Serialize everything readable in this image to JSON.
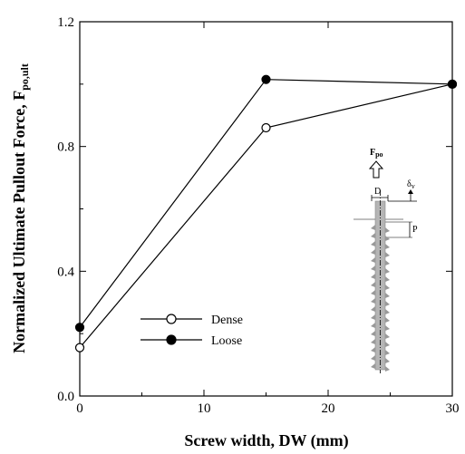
{
  "chart_data": {
    "type": "line",
    "xlabel": "Screw width, DW (mm)",
    "ylabel_main": "Normalized Ultimate Pullout Force, F",
    "ylabel_sub": "po,ult",
    "xlim": [
      0,
      30
    ],
    "ylim": [
      0,
      1.2
    ],
    "xticks": [
      0,
      10,
      20,
      30
    ],
    "xtick_labels": [
      "0",
      "10",
      "20",
      "30"
    ],
    "yticks": [
      0,
      0.4,
      0.8,
      1.2
    ],
    "ytick_labels": [
      "0.0",
      "0.4",
      "0.8",
      "1.2"
    ],
    "grid": false,
    "legend_position": "lower-left",
    "series": [
      {
        "name": "Dense",
        "marker": "open-circle",
        "x": [
          0,
          15,
          30
        ],
        "y": [
          0.155,
          0.86,
          1.0
        ]
      },
      {
        "name": "Loose",
        "marker": "filled-circle",
        "x": [
          0,
          15,
          30
        ],
        "y": [
          0.22,
          1.015,
          1.0
        ]
      }
    ],
    "inset": {
      "force_label": "F",
      "force_sub": "po",
      "diameter_label": "D",
      "displacement_label": "δ",
      "displacement_sub": "v",
      "pitch_label": "P"
    }
  }
}
